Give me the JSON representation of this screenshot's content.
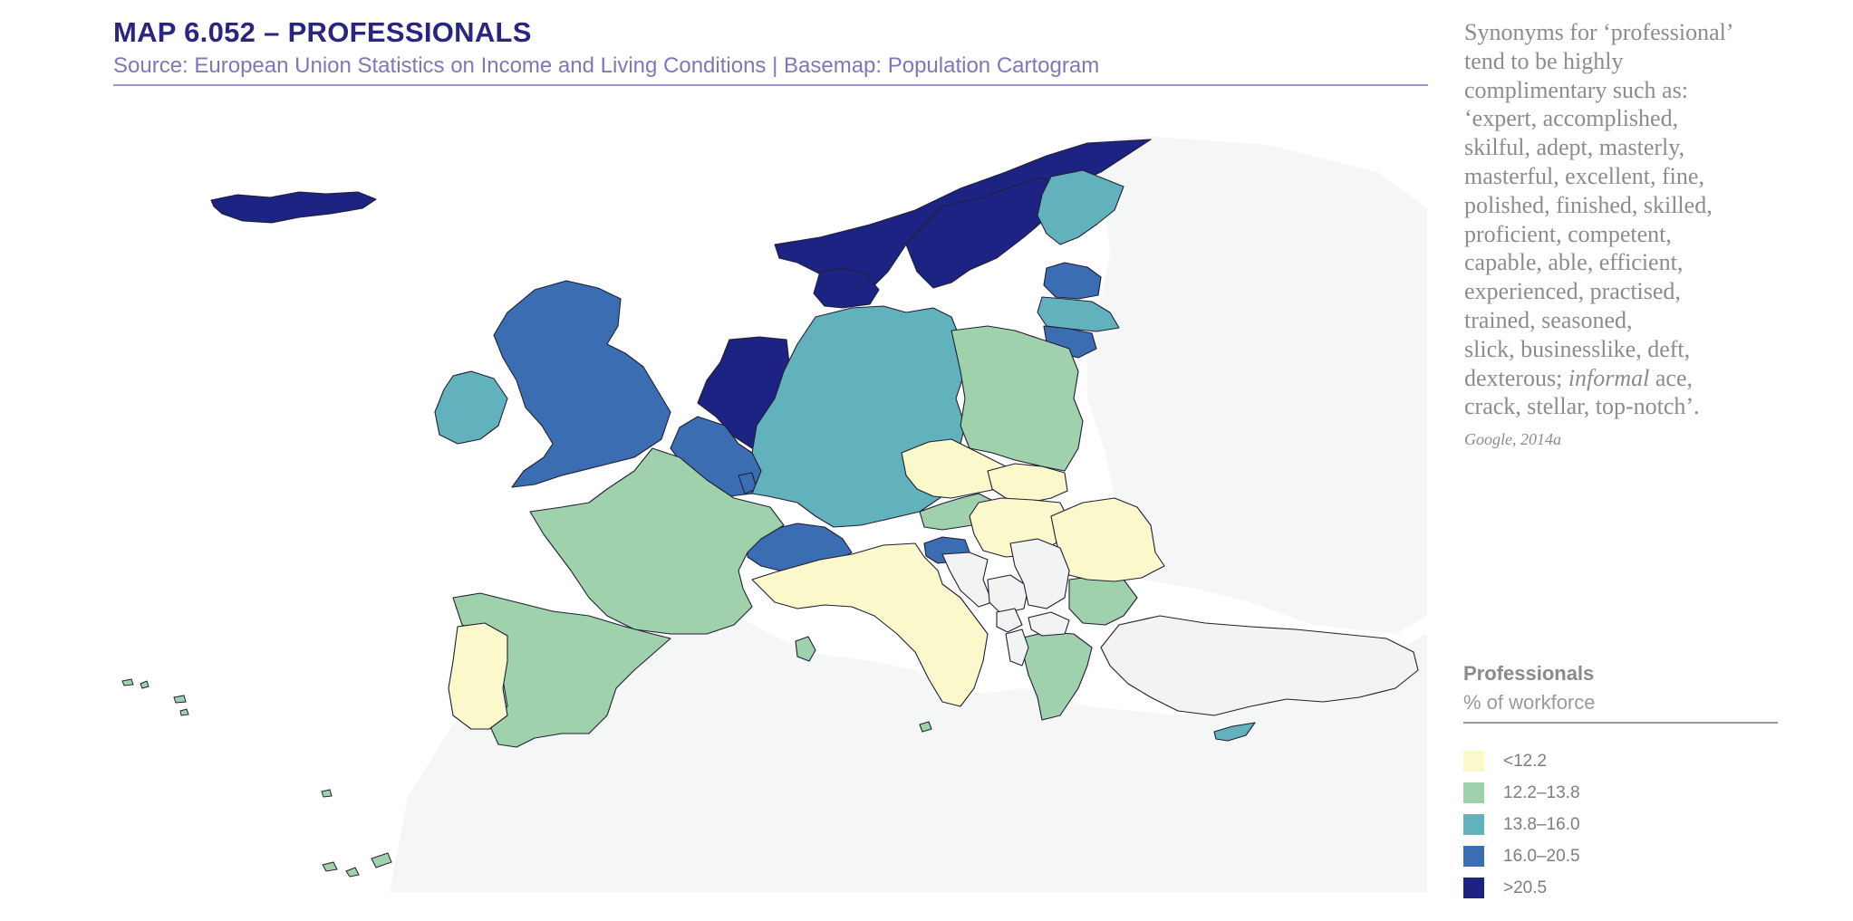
{
  "header": {
    "title": "MAP 6.052 – PROFESSIONALS",
    "source": "Source: European Union Statistics on Income and Living Conditions  |  Basemap: Population Cartogram"
  },
  "quote": {
    "lines": [
      "Synonyms for ‘professional’",
      "tend to be highly",
      "complimentary such as:",
      "‘expert, accomplished,",
      "skilful, adept, masterly,",
      "masterful, excellent, fine,",
      "polished, finished, skilled,",
      "proficient, competent,",
      "capable, able, efficient,",
      "experienced, practised,",
      "trained, seasoned,",
      "slick, businesslike, deft,",
      "dexterous; "
    ],
    "italic_word": "informal",
    "line_after_italic": " ace,",
    "last_line": "crack, stellar, top-notch’.",
    "citation": "Google, 2014a"
  },
  "legend": {
    "title": "Professionals",
    "subtitle": "% of workforce",
    "items": [
      {
        "label": "<12.2",
        "color": "#fbf8cc"
      },
      {
        "label": "12.2–13.8",
        "color": "#9fd2ac"
      },
      {
        "label": "13.8–16.0",
        "color": "#62b2be"
      },
      {
        "label": "16.0–20.5",
        "color": "#3b6db3"
      },
      {
        "label": ">20.5",
        "color": "#1d2383"
      }
    ]
  },
  "colors": {
    "no_data": "#f2f3f3",
    "land_background": "#f5f6f6",
    "border": "#1f1f33"
  },
  "regions": [
    {
      "name": "Iceland",
      "class": 5
    },
    {
      "name": "Norway",
      "class": 5
    },
    {
      "name": "Sweden",
      "class": 5
    },
    {
      "name": "Denmark",
      "class": 5
    },
    {
      "name": "Netherlands",
      "class": 5
    },
    {
      "name": "Finland",
      "class": 3
    },
    {
      "name": "Estonia",
      "class": 4
    },
    {
      "name": "Latvia",
      "class": 3
    },
    {
      "name": "Lithuania",
      "class": 4
    },
    {
      "name": "United Kingdom",
      "class": 4
    },
    {
      "name": "Ireland",
      "class": 3
    },
    {
      "name": "Belgium",
      "class": 4
    },
    {
      "name": "Luxembourg",
      "class": 4
    },
    {
      "name": "Switzerland",
      "class": 4
    },
    {
      "name": "Slovenia",
      "class": 4
    },
    {
      "name": "Germany",
      "class": 3
    },
    {
      "name": "Cyprus",
      "class": 3
    },
    {
      "name": "Poland",
      "class": 2
    },
    {
      "name": "France",
      "class": 2
    },
    {
      "name": "Spain",
      "class": 2
    },
    {
      "name": "Austria",
      "class": 2
    },
    {
      "name": "Bulgaria",
      "class": 2
    },
    {
      "name": "Greece",
      "class": 2
    },
    {
      "name": "Malta",
      "class": 2
    },
    {
      "name": "Corsica",
      "class": 2
    },
    {
      "name": "Portugal",
      "class": 1
    },
    {
      "name": "Italy",
      "class": 1
    },
    {
      "name": "Czech Republic",
      "class": 1
    },
    {
      "name": "Slovakia",
      "class": 1
    },
    {
      "name": "Hungary",
      "class": 1
    },
    {
      "name": "Romania",
      "class": 1
    },
    {
      "name": "Croatia",
      "class": 0
    },
    {
      "name": "Bosnia and Herzegovina",
      "class": 0
    },
    {
      "name": "Serbia",
      "class": 0
    },
    {
      "name": "Montenegro",
      "class": 0
    },
    {
      "name": "North Macedonia",
      "class": 0
    },
    {
      "name": "Albania",
      "class": 0
    },
    {
      "name": "Turkey",
      "class": 0
    }
  ]
}
